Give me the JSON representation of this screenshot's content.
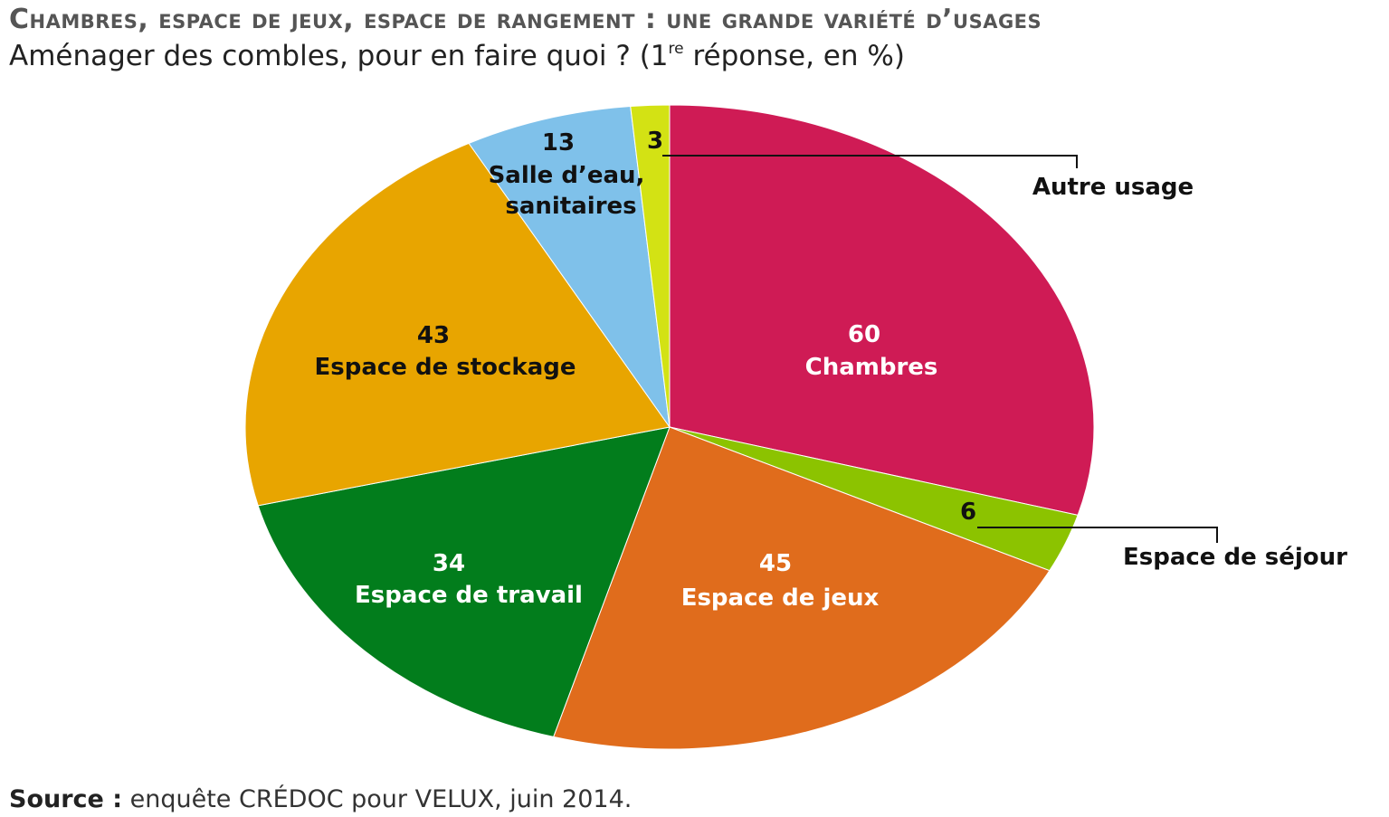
{
  "title": "Chambres, espace de jeux, espace de rangement : une grande variété d’usages",
  "subtitle": {
    "before": "Aménager des combles, pour en faire quoi ? (1",
    "sup": "re",
    "after": " réponse, en %)"
  },
  "source": {
    "label": "Source :",
    "text": " enquête CRÉDOC pour VELUX, juin 2014."
  },
  "chart_data": {
    "type": "pie",
    "unit": "%",
    "slices": [
      {
        "label": "Chambres",
        "value": 60,
        "color": "#cf1b55",
        "text_color": "#ffffff"
      },
      {
        "label": "Espace de séjour",
        "value": 6,
        "color": "#8cc300",
        "text_color": "#111111"
      },
      {
        "label": "Espace de jeux",
        "value": 45,
        "color": "#e06c1c",
        "text_color": "#ffffff"
      },
      {
        "label": "Espace de travail",
        "value": 34,
        "color": "#027d1c",
        "text_color": "#ffffff"
      },
      {
        "label": "Espace de stockage",
        "value": 43,
        "color": "#e8a500",
        "text_color": "#111111"
      },
      {
        "label": "Salle d’eau, sanitaires",
        "value": 13,
        "color": "#7fc1ea",
        "text_color": "#111111"
      },
      {
        "label": "Autre usage",
        "value": 3,
        "color": "#d3e214",
        "text_color": "#111111"
      }
    ]
  }
}
